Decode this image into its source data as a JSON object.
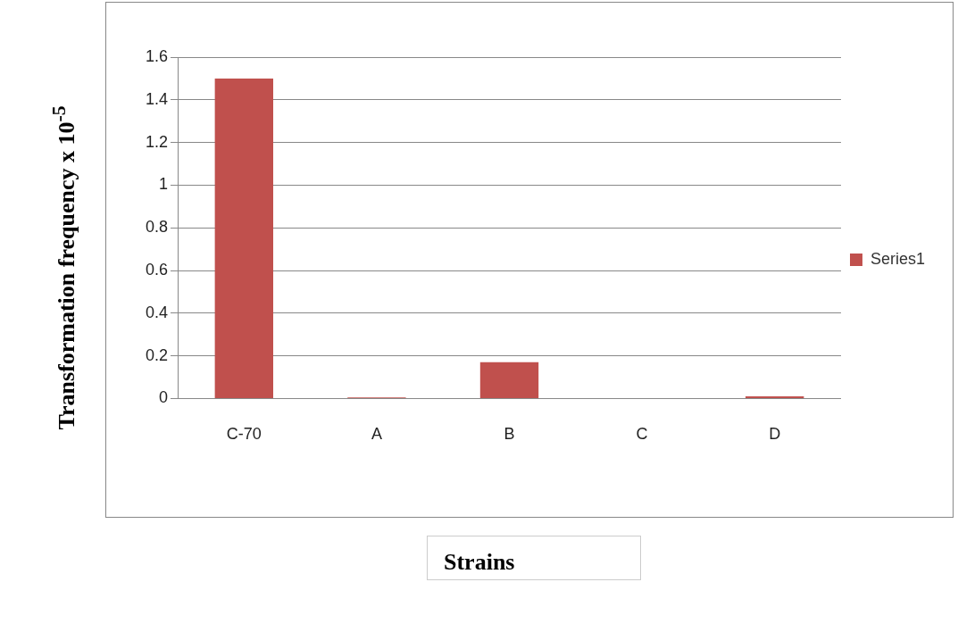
{
  "chart_data": {
    "type": "bar",
    "xlabel": "Strains",
    "ylabel": "Transformation frequency x 10$^{-5}$",
    "categories": [
      "C-70",
      "A",
      "B",
      "C",
      "D"
    ],
    "series": [
      {
        "name": "Series1",
        "color": "#c0504d",
        "values": [
          1.5,
          0.005,
          0.17,
          0.002,
          0.01
        ]
      }
    ],
    "ylim": [
      0,
      1.6
    ],
    "yticks": [
      0,
      0.2,
      0.4,
      0.6,
      0.8,
      1,
      1.2,
      1.4,
      1.6
    ],
    "grid": "y",
    "legend": "right"
  }
}
